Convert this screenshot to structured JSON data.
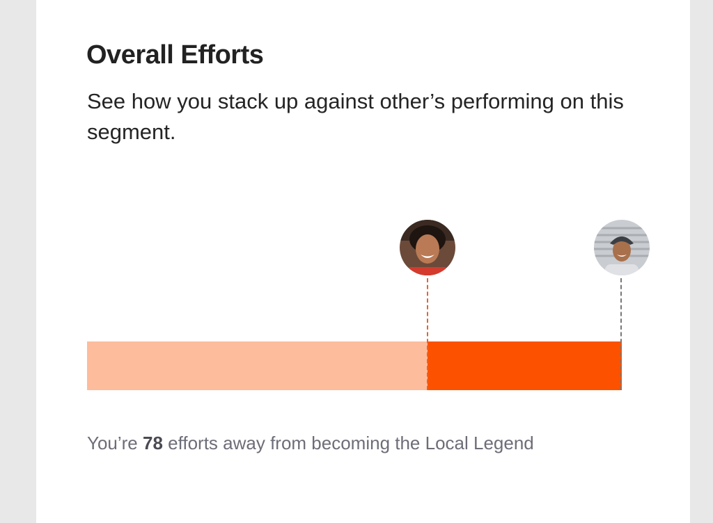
{
  "card": {
    "title": "Overall Efforts",
    "subtitle": "See how you stack up against other’s performing on this segment."
  },
  "progress": {
    "user_fraction": 0.637,
    "legend_fraction": 1.0,
    "colors": {
      "completed": "#fdbc9c",
      "remaining": "#fc5200",
      "user_marker": "#e8622a",
      "legend_marker": "#777777"
    },
    "icons": {
      "user": "user-avatar-icon",
      "legend": "local-legend-avatar-icon"
    }
  },
  "footer": {
    "prefix": "You’re ",
    "count": "78",
    "suffix": " efforts away from becoming the Local Legend"
  }
}
